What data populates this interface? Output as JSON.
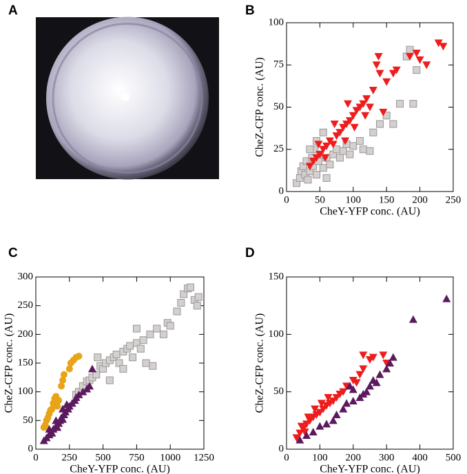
{
  "chart_data": [
    {
      "type": "image",
      "panel": "A"
    },
    {
      "type": "scatter",
      "panel": "B",
      "xlabel": "CheY-YFP conc. (AU)",
      "ylabel": "CheZ-CFP conc. (AU)",
      "xlim": [
        0,
        250
      ],
      "ylim": [
        0,
        100
      ],
      "xticks": [
        0,
        50,
        100,
        150,
        200,
        250
      ],
      "yticks": [
        0,
        25,
        50,
        75,
        100
      ],
      "series": [
        {
          "marker": "square",
          "color": "#d4d0d0",
          "x": [
            15,
            20,
            22,
            25,
            28,
            30,
            32,
            35,
            38,
            40,
            42,
            45,
            48,
            50,
            55,
            60,
            65,
            70,
            75,
            80,
            85,
            90,
            95,
            100,
            110,
            115,
            125,
            130,
            140,
            150,
            160,
            170,
            180,
            185,
            190,
            195,
            45,
            55,
            60,
            35
          ],
          "values": [
            5,
            8,
            12,
            15,
            10,
            18,
            7,
            12,
            20,
            15,
            25,
            10,
            18,
            22,
            14,
            20,
            16,
            22,
            25,
            20,
            24,
            28,
            22,
            27,
            30,
            25,
            24,
            35,
            40,
            45,
            40,
            52,
            80,
            84,
            52,
            72,
            30,
            35,
            8,
            25
          ]
        },
        {
          "marker": "triangle-down",
          "color": "#ee1c1c",
          "x": [
            35,
            40,
            45,
            50,
            55,
            60,
            65,
            70,
            75,
            80,
            85,
            90,
            95,
            100,
            105,
            110,
            115,
            120,
            125,
            130,
            135,
            140,
            145,
            150,
            160,
            165,
            185,
            195,
            200,
            210,
            228,
            235,
            48,
            58,
            72,
            88,
            102,
            118,
            138,
            92
          ],
          "values": [
            15,
            18,
            20,
            22,
            25,
            27,
            30,
            28,
            33,
            35,
            38,
            40,
            42,
            45,
            48,
            50,
            52,
            55,
            50,
            60,
            75,
            70,
            47,
            65,
            70,
            72,
            80,
            82,
            78,
            75,
            88,
            86,
            28,
            20,
            40,
            30,
            38,
            45,
            80,
            52
          ]
        }
      ]
    },
    {
      "type": "scatter",
      "panel": "C",
      "xlabel": "CheY-YFP conc. (AU)",
      "ylabel": "CheZ-CFP conc. (AU)",
      "xlim": [
        0,
        1250
      ],
      "ylim": [
        0,
        300
      ],
      "xticks": [
        0,
        250,
        500,
        750,
        1000,
        1250
      ],
      "yticks": [
        0,
        50,
        100,
        150,
        200,
        250,
        300
      ],
      "series": [
        {
          "marker": "square",
          "color": "#d4d0d0",
          "x": [
            300,
            320,
            350,
            380,
            400,
            420,
            450,
            480,
            500,
            520,
            550,
            580,
            600,
            620,
            650,
            680,
            700,
            720,
            750,
            780,
            800,
            820,
            850,
            870,
            900,
            950,
            980,
            1000,
            1050,
            1080,
            1100,
            1130,
            1150,
            1180,
            1200,
            1210,
            460,
            550,
            650,
            750
          ],
          "values": [
            95,
            100,
            110,
            118,
            120,
            125,
            130,
            145,
            140,
            150,
            155,
            160,
            165,
            150,
            170,
            175,
            180,
            160,
            185,
            175,
            190,
            150,
            200,
            145,
            210,
            200,
            220,
            215,
            240,
            255,
            270,
            280,
            282,
            260,
            250,
            265,
            160,
            120,
            140,
            210
          ]
        },
        {
          "marker": "triangle-up",
          "color": "#5b1a5e",
          "x": [
            60,
            80,
            100,
            110,
            120,
            130,
            150,
            160,
            170,
            180,
            190,
            200,
            210,
            220,
            240,
            250,
            270,
            290,
            300,
            320,
            350,
            400,
            150,
            200,
            230,
            100,
            420,
            380
          ],
          "values": [
            15,
            20,
            25,
            30,
            28,
            35,
            40,
            38,
            45,
            50,
            55,
            52,
            60,
            65,
            70,
            75,
            80,
            85,
            90,
            95,
            100,
            110,
            50,
            70,
            78,
            35,
            140,
            105
          ]
        },
        {
          "marker": "circle",
          "color": "#e8a317",
          "x": [
            60,
            70,
            80,
            90,
            100,
            110,
            120,
            130,
            140,
            150,
            160,
            170,
            190,
            200,
            210,
            250,
            260,
            280,
            300,
            320
          ],
          "values": [
            38,
            42,
            50,
            55,
            62,
            68,
            70,
            80,
            88,
            92,
            75,
            85,
            110,
            120,
            130,
            140,
            150,
            155,
            160,
            162
          ]
        }
      ]
    },
    {
      "type": "scatter",
      "panel": "D",
      "xlabel": "CheY-YFP conc. (AU)",
      "ylabel": "CheZ-CFP conc. (AU)",
      "xlim": [
        0,
        500
      ],
      "ylim": [
        0,
        150
      ],
      "xticks": [
        0,
        100,
        200,
        300,
        400,
        500
      ],
      "yticks": [
        0,
        50,
        100,
        150
      ],
      "series": [
        {
          "marker": "triangle-down",
          "color": "#ee1c1c",
          "x": [
            30,
            40,
            50,
            55,
            60,
            70,
            80,
            90,
            100,
            110,
            120,
            130,
            140,
            150,
            160,
            170,
            180,
            200,
            210,
            220,
            230,
            250,
            260,
            290,
            300,
            45,
            65,
            85,
            105,
            125,
            230
          ],
          "values": [
            10,
            14,
            18,
            15,
            22,
            25,
            28,
            30,
            32,
            35,
            38,
            40,
            42,
            45,
            48,
            50,
            55,
            60,
            58,
            65,
            70,
            78,
            80,
            82,
            75,
            20,
            28,
            35,
            40,
            45,
            82
          ]
        },
        {
          "marker": "triangle-up",
          "color": "#5b1a5e",
          "x": [
            40,
            60,
            80,
            100,
            120,
            140,
            150,
            170,
            180,
            200,
            220,
            240,
            250,
            260,
            270,
            280,
            300,
            310,
            320,
            380,
            480,
            200,
            230,
            190
          ],
          "values": [
            8,
            12,
            15,
            20,
            22,
            25,
            30,
            35,
            40,
            42,
            45,
            50,
            55,
            60,
            58,
            65,
            70,
            75,
            80,
            113,
            131,
            52,
            48,
            55
          ]
        }
      ]
    }
  ]
}
